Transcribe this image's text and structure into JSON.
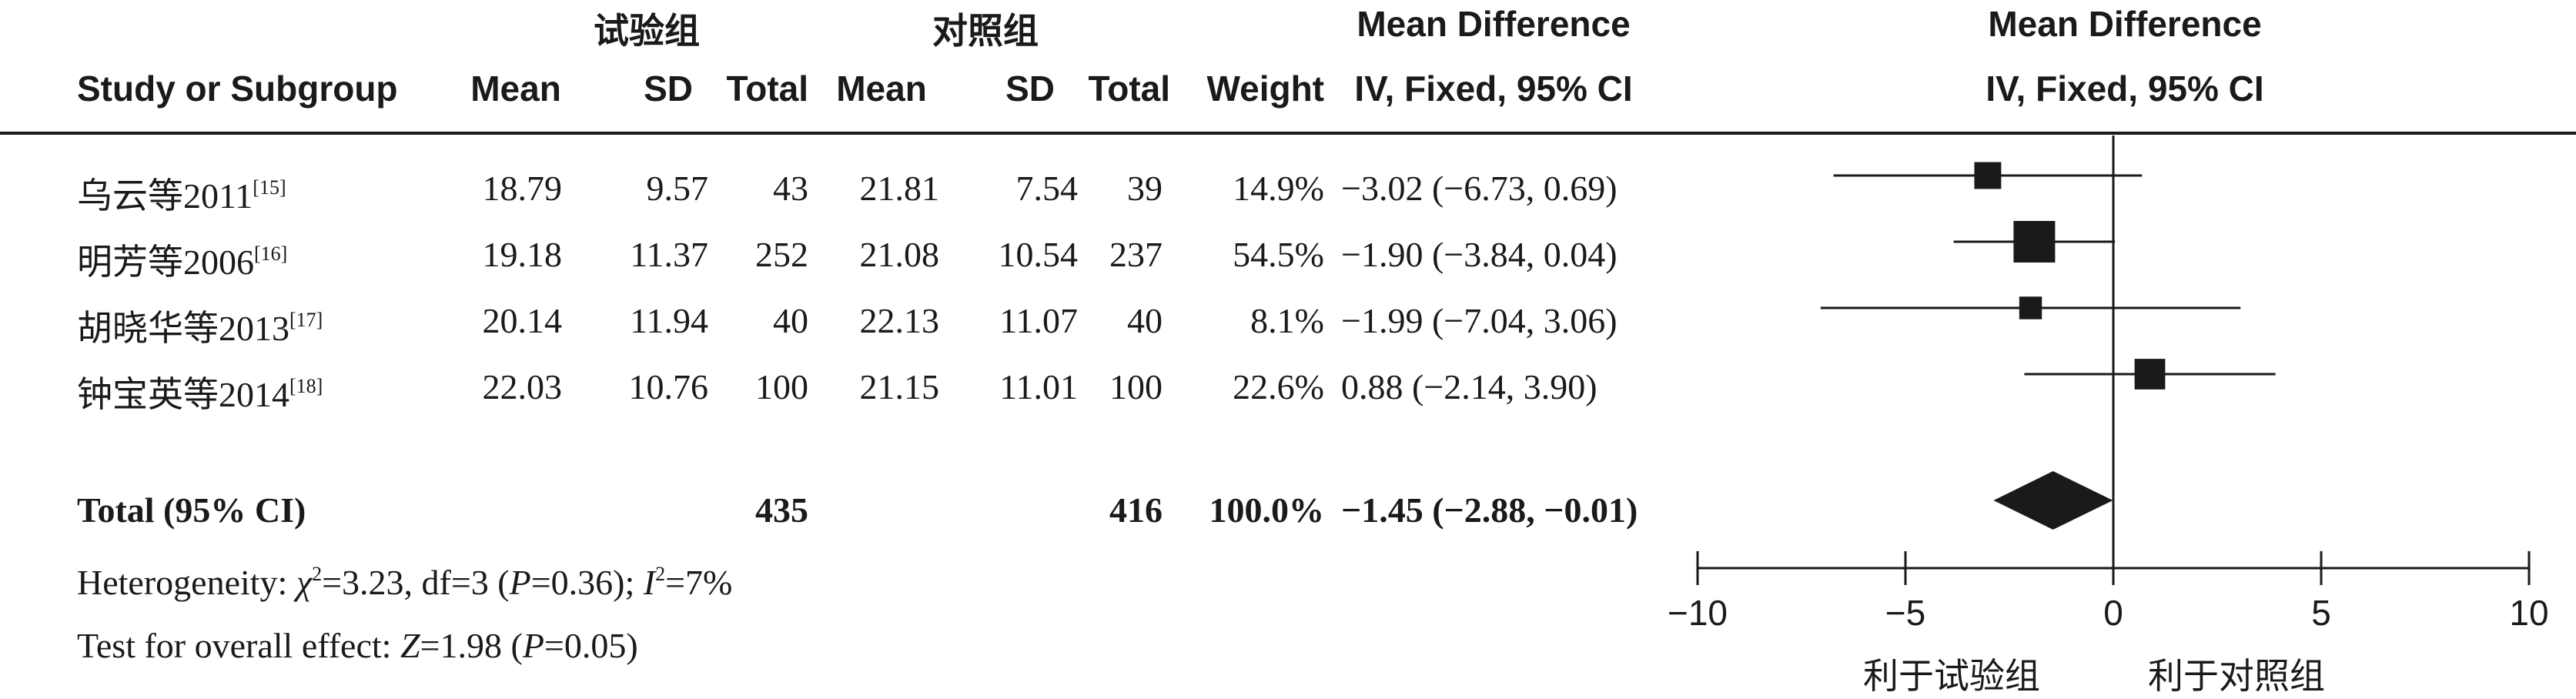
{
  "headers": {
    "group1": "试验组",
    "group2": "对照组",
    "md_title": "Mean Difference",
    "md_sub": "IV, Fixed, 95% CI",
    "plot_title": "Mean Difference",
    "plot_sub": "IV, Fixed, 95% CI",
    "study": "Study or Subgroup",
    "mean1": "Mean",
    "sd1": "SD",
    "total1": "Total",
    "mean2": "Mean",
    "sd2": "SD",
    "total2": "Total",
    "weight": "Weight"
  },
  "studies": [
    {
      "name": "乌云等2011",
      "ref": "[15]",
      "mean1": "18.79",
      "sd1": "9.57",
      "n1": "43",
      "mean2": "21.81",
      "sd2": "7.54",
      "n2": "39",
      "weight": "14.9%",
      "ci_text": "−3.02 (−6.73, 0.69)"
    },
    {
      "name": "明芳等2006",
      "ref": "[16]",
      "mean1": "19.18",
      "sd1": "11.37",
      "n1": "252",
      "mean2": "21.08",
      "sd2": "10.54",
      "n2": "237",
      "weight": "54.5%",
      "ci_text": "−1.90 (−3.84, 0.04)"
    },
    {
      "name": "胡晓华等2013",
      "ref": "[17]",
      "mean1": "20.14",
      "sd1": "11.94",
      "n1": "40",
      "mean2": "22.13",
      "sd2": "11.07",
      "n2": "40",
      "weight": "8.1%",
      "ci_text": "−1.99 (−7.04, 3.06)"
    },
    {
      "name": "钟宝英等2014",
      "ref": "[18]",
      "mean1": "22.03",
      "sd1": "10.76",
      "n1": "100",
      "mean2": "21.15",
      "sd2": "11.01",
      "n2": "100",
      "weight": "22.6%",
      "ci_text": "0.88 (−2.14, 3.90)"
    }
  ],
  "total": {
    "label": "Total (95% CI)",
    "n1": "435",
    "n2": "416",
    "weight": "100.0%",
    "ci_text": "−1.45 (−2.88, −0.01)"
  },
  "heterogeneity": {
    "prefix": "Heterogeneity: ",
    "chi_symbol": "χ",
    "chi_exp": "2",
    "chi_value": "=3.23, df=3 (",
    "p_symbol": "P",
    "p_value": "=0.36); ",
    "i_symbol": "I",
    "i_exp": "2",
    "i_value": "=7%"
  },
  "overall": {
    "prefix": "Test for overall effect: ",
    "z_symbol": "Z",
    "z_value": "=1.98 (",
    "p_symbol": "P",
    "p_value": "=0.05)"
  },
  "axis_labels": {
    "left": "利于试验组",
    "right": "利于对照组"
  },
  "chart_data": {
    "type": "scatter",
    "subtype": "forest",
    "x_range": [
      -10,
      10
    ],
    "ticks": [
      -10,
      -5,
      0,
      5,
      10
    ],
    "tick_labels": [
      "−10",
      "−5",
      "0",
      "5",
      "10"
    ],
    "studies": [
      {
        "md": -3.02,
        "lo": -6.73,
        "hi": 0.69,
        "weight": 14.9
      },
      {
        "md": -1.9,
        "lo": -3.84,
        "hi": 0.04,
        "weight": 54.5
      },
      {
        "md": -1.99,
        "lo": -7.04,
        "hi": 3.06,
        "weight": 8.1
      },
      {
        "md": 0.88,
        "lo": -2.14,
        "hi": 3.9,
        "weight": 22.6
      }
    ],
    "pooled": {
      "md": -1.45,
      "lo": -2.88,
      "hi": -0.01
    },
    "color": "#1a1a1a"
  }
}
